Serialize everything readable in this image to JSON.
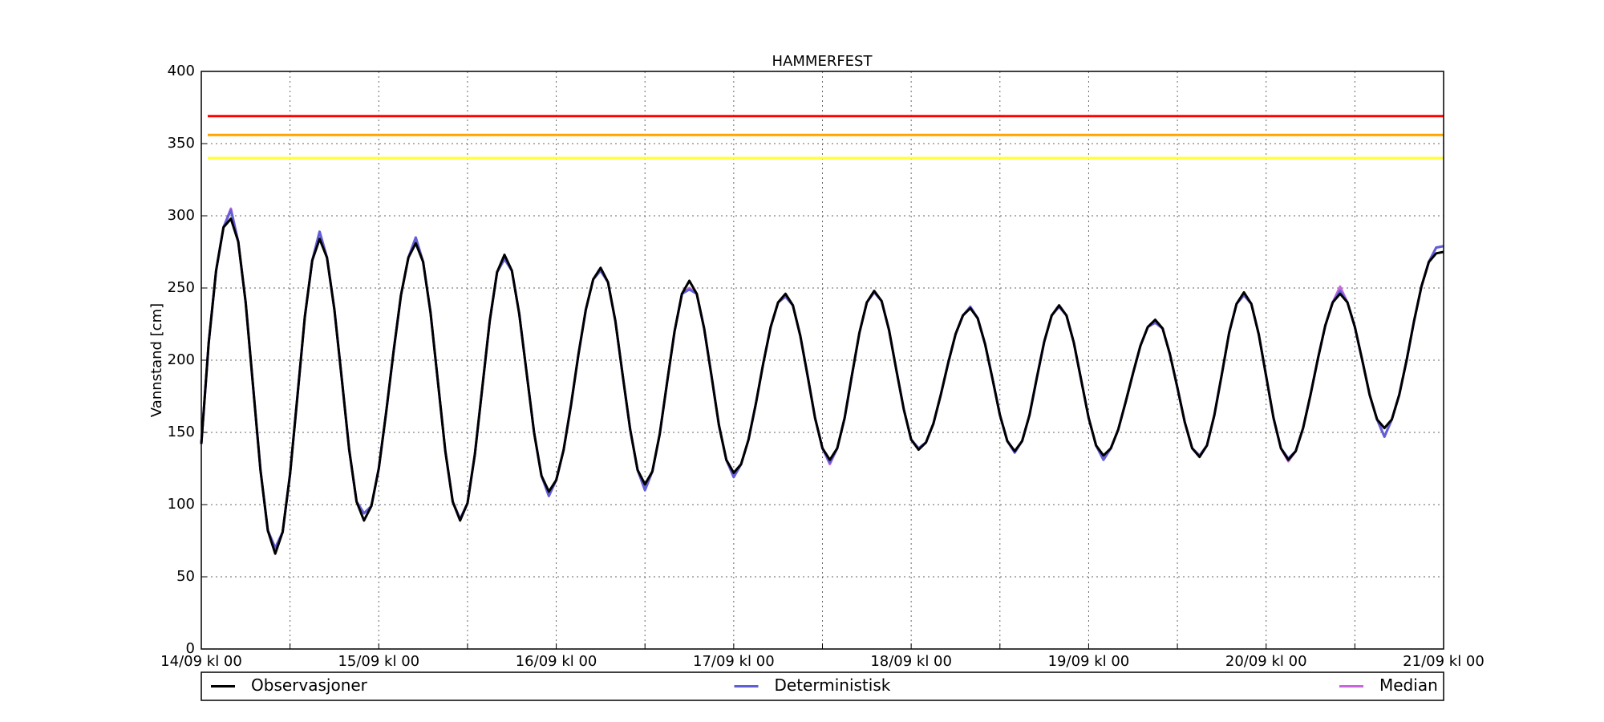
{
  "chart_data": {
    "type": "line",
    "title": "HAMMERFEST",
    "y_label": "Vannstand [cm]",
    "x": [
      0,
      1,
      2,
      3,
      4,
      5,
      6,
      7,
      8,
      9,
      10,
      11,
      12,
      13,
      14,
      15,
      16,
      17,
      18,
      19,
      20,
      21,
      22,
      23,
      24,
      25,
      26,
      27,
      28,
      29,
      30,
      31,
      32,
      33,
      34,
      35,
      36,
      37,
      38,
      39,
      40,
      41,
      42,
      43,
      44,
      45,
      46,
      47,
      48,
      49,
      50,
      51,
      52,
      53,
      54,
      55,
      56,
      57,
      58,
      59,
      60,
      61,
      62,
      63,
      64,
      65,
      66,
      67,
      68,
      69,
      70,
      71,
      72,
      73,
      74,
      75,
      76,
      77,
      78,
      79,
      80,
      81,
      82,
      83,
      84,
      85,
      86,
      87,
      88,
      89,
      90,
      91,
      92,
      93,
      94,
      95,
      96,
      97,
      98,
      99,
      100,
      101,
      102,
      103,
      104,
      105,
      106,
      107,
      108,
      109,
      110,
      111,
      112,
      113,
      114,
      115,
      116,
      117,
      118,
      119,
      120,
      121,
      122,
      123,
      124,
      125,
      126,
      127,
      128,
      129,
      130,
      131,
      132,
      133,
      134,
      135,
      136,
      137,
      138,
      139,
      140,
      141,
      142,
      143,
      144,
      145,
      146,
      147,
      148,
      149,
      150,
      151,
      152,
      153,
      154,
      155,
      156,
      157,
      158,
      159,
      160,
      161,
      162,
      163,
      164,
      165,
      166,
      167,
      168
    ],
    "series": [
      {
        "name": "Observasjoner",
        "color": "#000000",
        "values": [
          142,
          212,
          262,
          292,
          298,
          282,
          240,
          182,
          124,
          82,
          66,
          81,
          121,
          175,
          230,
          269,
          284,
          271,
          235,
          187,
          138,
          102,
          89,
          99,
          125,
          164,
          206,
          245,
          271,
          281,
          268,
          233,
          185,
          137,
          102,
          89,
          101,
          135,
          181,
          227,
          261,
          273,
          262,
          232,
          191,
          150,
          120,
          109,
          117,
          138,
          169,
          204,
          235,
          256,
          264,
          254,
          227,
          189,
          152,
          124,
          114,
          123,
          149,
          185,
          220,
          246,
          255,
          246,
          222,
          189,
          155,
          131,
          122,
          128,
          145,
          170,
          198,
          223,
          240,
          246,
          238,
          217,
          189,
          160,
          139,
          131,
          139,
          160,
          190,
          219,
          240,
          248,
          241,
          221,
          193,
          166,
          145,
          138,
          143,
          156,
          176,
          198,
          218,
          231,
          236,
          229,
          211,
          187,
          162,
          144,
          137,
          144,
          162,
          188,
          213,
          231,
          238,
          231,
          212,
          186,
          160,
          141,
          134,
          139,
          152,
          171,
          191,
          210,
          223,
          228,
          222,
          204,
          181,
          157,
          139,
          133,
          141,
          162,
          190,
          219,
          239,
          247,
          239,
          218,
          189,
          160,
          139,
          131,
          137,
          153,
          176,
          201,
          224,
          240,
          246,
          240,
          223,
          200,
          176,
          159,
          153,
          159,
          176,
          200,
          227,
          251,
          268,
          274,
          275
        ]
      },
      {
        "name": "Deterministisk",
        "color": "#5f5fd8",
        "values": [
          142,
          212,
          262,
          292,
          304,
          282,
          240,
          182,
          124,
          82,
          70,
          81,
          121,
          175,
          230,
          269,
          289,
          271,
          235,
          187,
          138,
          102,
          94,
          99,
          125,
          164,
          206,
          245,
          271,
          285,
          268,
          233,
          185,
          137,
          102,
          90,
          101,
          135,
          181,
          227,
          261,
          270,
          262,
          232,
          191,
          150,
          120,
          106,
          117,
          138,
          169,
          204,
          235,
          256,
          262,
          254,
          227,
          189,
          152,
          124,
          110,
          123,
          149,
          185,
          220,
          246,
          249,
          246,
          222,
          189,
          155,
          131,
          119,
          128,
          145,
          170,
          198,
          223,
          240,
          244,
          238,
          217,
          189,
          160,
          139,
          129,
          139,
          160,
          190,
          219,
          240,
          247,
          241,
          221,
          193,
          166,
          145,
          139,
          143,
          156,
          176,
          198,
          218,
          231,
          237,
          229,
          211,
          187,
          162,
          144,
          136,
          144,
          162,
          188,
          213,
          231,
          237,
          231,
          212,
          186,
          160,
          141,
          131,
          139,
          152,
          171,
          191,
          210,
          223,
          226,
          222,
          204,
          181,
          157,
          139,
          134,
          141,
          162,
          190,
          219,
          239,
          245,
          239,
          218,
          189,
          160,
          139,
          132,
          137,
          153,
          176,
          201,
          224,
          240,
          248,
          240,
          223,
          200,
          176,
          159,
          147,
          159,
          176,
          200,
          227,
          251,
          268,
          278,
          279
        ]
      },
      {
        "name": "Median",
        "color": "#c966dd",
        "values": [
          142,
          212,
          262,
          292,
          305,
          282,
          240,
          182,
          124,
          82,
          70,
          81,
          121,
          175,
          230,
          269,
          289,
          271,
          235,
          187,
          138,
          102,
          94,
          99,
          125,
          164,
          206,
          245,
          271,
          285,
          268,
          233,
          185,
          137,
          102,
          90,
          101,
          135,
          181,
          227,
          261,
          270,
          262,
          232,
          191,
          150,
          120,
          106,
          117,
          138,
          169,
          204,
          235,
          256,
          262,
          254,
          227,
          189,
          152,
          124,
          110,
          123,
          149,
          185,
          220,
          246,
          250,
          246,
          222,
          189,
          155,
          131,
          119,
          128,
          145,
          170,
          198,
          223,
          240,
          244,
          238,
          217,
          189,
          160,
          139,
          128,
          139,
          160,
          190,
          219,
          240,
          247,
          241,
          221,
          193,
          166,
          145,
          139,
          143,
          156,
          176,
          198,
          218,
          231,
          237,
          229,
          211,
          187,
          162,
          144,
          136,
          144,
          162,
          188,
          213,
          231,
          237,
          231,
          212,
          186,
          160,
          141,
          131,
          139,
          152,
          171,
          191,
          210,
          223,
          226,
          222,
          204,
          181,
          157,
          139,
          134,
          141,
          162,
          190,
          219,
          239,
          245,
          239,
          218,
          189,
          160,
          139,
          130,
          137,
          153,
          176,
          201,
          224,
          240,
          251,
          240,
          223,
          200,
          176,
          159,
          147,
          159,
          176,
          200,
          227,
          251,
          268,
          278,
          279
        ]
      }
    ],
    "reference_lines": [
      {
        "value": 369,
        "color": "#ff0000"
      },
      {
        "value": 356,
        "color": "#ffa500"
      },
      {
        "value": 340,
        "color": "#ffff33"
      }
    ],
    "xlim": [
      0,
      168
    ],
    "xticks": [
      {
        "value": 0,
        "label": "14/09 kl 00"
      },
      {
        "value": 24,
        "label": "15/09 kl 00"
      },
      {
        "value": 48,
        "label": "16/09 kl 00"
      },
      {
        "value": 72,
        "label": "17/09 kl 00"
      },
      {
        "value": 96,
        "label": "18/09 kl 00"
      },
      {
        "value": 120,
        "label": "19/09 kl 00"
      },
      {
        "value": 144,
        "label": "20/09 kl 00"
      },
      {
        "value": 168,
        "label": "21/09 kl 00"
      }
    ],
    "x_minor_ticks": [
      12,
      36,
      60,
      84,
      108,
      132,
      156
    ],
    "ylim": [
      0,
      400
    ],
    "yticks": [
      0,
      50,
      100,
      150,
      200,
      250,
      300,
      350,
      400
    ],
    "grid": true,
    "legend": "below"
  }
}
